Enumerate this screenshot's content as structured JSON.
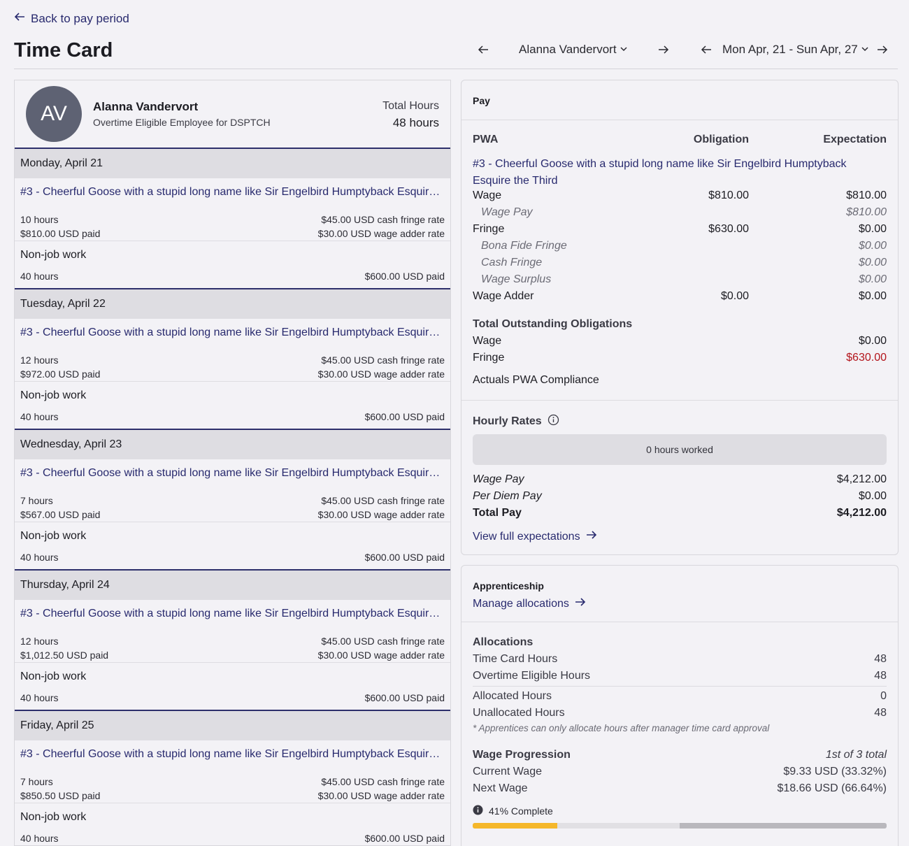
{
  "nav": {
    "back": "Back to pay period",
    "title": "Time Card",
    "employee_select": "Alanna Vandervort",
    "week_select": "Mon Apr, 21 - Sun Apr, 27"
  },
  "employee": {
    "initials": "AV",
    "name": "Alanna Vandervort",
    "subtitle": "Overtime Eligible Employee for DSPTCH",
    "total_hours_label": "Total Hours",
    "total_hours": "48 hours"
  },
  "days": [
    {
      "date": "Monday, April 21",
      "job": "#3 - Cheerful Goose with a stupid long name like Sir Engelbird Humptyback Esquire the Third",
      "hours": "10 hours",
      "paid": "$810.00 USD paid",
      "fringe": "$45.00 USD cash fringe rate",
      "adder": "$30.00 USD wage adder rate",
      "nj_label": "Non-job work",
      "nj_hours": "40 hours",
      "nj_paid": "$600.00 USD paid"
    },
    {
      "date": "Tuesday, April 22",
      "job": "#3 - Cheerful Goose with a stupid long name like Sir Engelbird Humptyback Esquire the Third",
      "hours": "12 hours",
      "paid": "$972.00 USD paid",
      "fringe": "$45.00 USD cash fringe rate",
      "adder": "$30.00 USD wage adder rate",
      "nj_label": "Non-job work",
      "nj_hours": "40 hours",
      "nj_paid": "$600.00 USD paid"
    },
    {
      "date": "Wednesday, April 23",
      "job": "#3 - Cheerful Goose with a stupid long name like Sir Engelbird Humptyback Esquire the Third",
      "hours": "7 hours",
      "paid": "$567.00 USD paid",
      "fringe": "$45.00 USD cash fringe rate",
      "adder": "$30.00 USD wage adder rate",
      "nj_label": "Non-job work",
      "nj_hours": "40 hours",
      "nj_paid": "$600.00 USD paid"
    },
    {
      "date": "Thursday, April 24",
      "job": "#3 - Cheerful Goose with a stupid long name like Sir Engelbird Humptyback Esquire the Third",
      "hours": "12 hours",
      "paid": "$1,012.50 USD paid",
      "fringe": "$45.00 USD cash fringe rate",
      "adder": "$30.00 USD wage adder rate",
      "nj_label": "Non-job work",
      "nj_hours": "40 hours",
      "nj_paid": "$600.00 USD paid"
    },
    {
      "date": "Friday, April 25",
      "job": "#3 - Cheerful Goose with a stupid long name like Sir Engelbird Humptyback Esquire the Third",
      "hours": "7 hours",
      "paid": "$850.50 USD paid",
      "fringe": "$45.00 USD cash fringe rate",
      "adder": "$30.00 USD wage adder rate",
      "nj_label": "Non-job work",
      "nj_hours": "40 hours",
      "nj_paid": "$600.00 USD paid"
    }
  ],
  "pay": {
    "heading": "Pay",
    "col_pwa": "PWA",
    "col_obligation": "Obligation",
    "col_expectation": "Expectation",
    "job_link": "#3 - Cheerful Goose with a stupid long name like Sir Engelbird Humptyback Esquire the Third",
    "rows": [
      {
        "label": "Wage",
        "obligation": "$810.00",
        "expectation": "$810.00"
      },
      {
        "label": "Wage Pay",
        "obligation": "",
        "expectation": "$810.00"
      },
      {
        "label": "Fringe",
        "obligation": "$630.00",
        "expectation": "$0.00"
      },
      {
        "label": "Bona Fide Fringe",
        "obligation": "",
        "expectation": "$0.00"
      },
      {
        "label": "Cash Fringe",
        "obligation": "",
        "expectation": "$0.00"
      },
      {
        "label": "Wage Surplus",
        "obligation": "",
        "expectation": "$0.00"
      },
      {
        "label": "Wage Adder",
        "obligation": "$0.00",
        "expectation": "$0.00"
      }
    ],
    "outstanding_heading": "Total Outstanding Obligations",
    "outstanding_wage_label": "Wage",
    "outstanding_wage": "$0.00",
    "outstanding_fringe_label": "Fringe",
    "outstanding_fringe": "$630.00",
    "compliance": "Actuals PWA Compliance",
    "hourly_heading": "Hourly Rates",
    "hours_worked": "0 hours worked",
    "wage_pay_label": "Wage Pay",
    "wage_pay": "$4,212.00",
    "per_diem_label": "Per Diem Pay",
    "per_diem": "$0.00",
    "total_pay_label": "Total Pay",
    "total_pay": "$4,212.00",
    "view_link": "View full expectations"
  },
  "apprenticeship": {
    "heading": "Apprenticeship",
    "manage_link": "Manage allocations",
    "alloc_heading": "Allocations",
    "time_card_hours_label": "Time Card Hours",
    "time_card_hours": "48",
    "ot_hours_label": "Overtime Eligible Hours",
    "ot_hours": "48",
    "allocated_label": "Allocated Hours",
    "allocated": "0",
    "unallocated_label": "Unallocated Hours",
    "unallocated": "48",
    "note": "* Apprentices can only allocate hours after manager time card approval",
    "progression_heading": "Wage Progression",
    "progression_of": "1st of 3 total",
    "current_label": "Current Wage",
    "current": "$9.33 USD (33.32%)",
    "next_label": "Next Wage",
    "next": "$18.66 USD (66.64%)",
    "complete_text": "41% Complete",
    "complete_fraction": 0.41
  },
  "colors": {
    "accent": "#282a6e",
    "alert": "#b3141b",
    "progress": "#f5b72a"
  }
}
